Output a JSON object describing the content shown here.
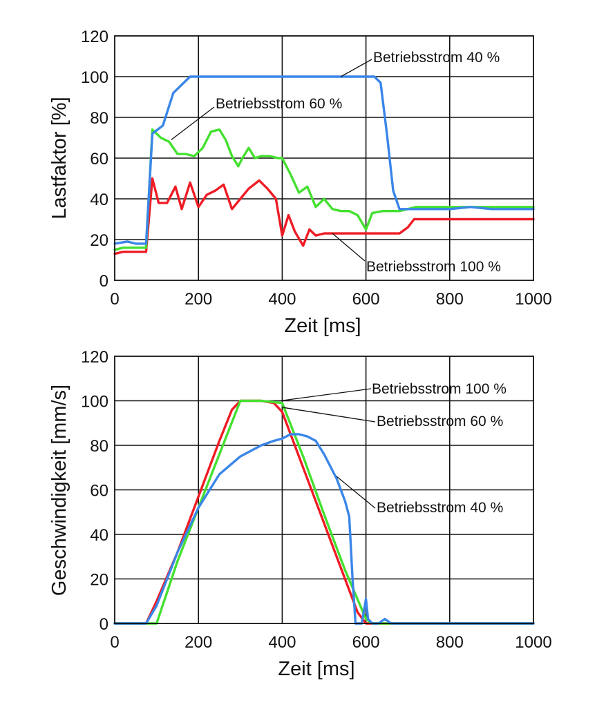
{
  "colors": {
    "red": "#ee1c25",
    "green": "#44e030",
    "blue": "#3a86e8"
  },
  "chart_data": [
    {
      "type": "line",
      "xlabel": "Zeit [ms]",
      "ylabel": "Lastfaktor [%]",
      "xlim": [
        0,
        1000
      ],
      "ylim": [
        0,
        120
      ],
      "xticks": [
        0,
        200,
        400,
        600,
        800,
        1000
      ],
      "yticks": [
        0,
        20,
        40,
        60,
        80,
        100,
        120
      ],
      "grid": true,
      "series": [
        {
          "name": "Betriebsstrom 100 %",
          "color": "red",
          "x": [
            0,
            20,
            40,
            60,
            75,
            90,
            105,
            125,
            145,
            160,
            180,
            200,
            220,
            240,
            260,
            280,
            300,
            320,
            345,
            365,
            385,
            400,
            415,
            430,
            450,
            465,
            480,
            500,
            520,
            540,
            560,
            580,
            600,
            620,
            640,
            660,
            680,
            700,
            715,
            750,
            800,
            850,
            900,
            950,
            1000
          ],
          "y": [
            13,
            14,
            14,
            14,
            14,
            50,
            38,
            38,
            46,
            35,
            48,
            36,
            42,
            44,
            47,
            35,
            40,
            45,
            49,
            45,
            40,
            22,
            32,
            24,
            17,
            25,
            22,
            23,
            23,
            23,
            23,
            23,
            23,
            23,
            23,
            23,
            23,
            26,
            30,
            30,
            30,
            30,
            30,
            30,
            30
          ]
        },
        {
          "name": "Betriebsstrom 60 %",
          "color": "green",
          "x": [
            0,
            20,
            40,
            60,
            75,
            90,
            110,
            130,
            150,
            170,
            190,
            210,
            230,
            250,
            265,
            280,
            295,
            305,
            320,
            335,
            350,
            370,
            390,
            400,
            420,
            440,
            460,
            480,
            500,
            520,
            540,
            560,
            580,
            600,
            615,
            640,
            680,
            720,
            760,
            800,
            850,
            900,
            950,
            1000
          ],
          "y": [
            15,
            16,
            16,
            16,
            16,
            74,
            70,
            68,
            62,
            62,
            61,
            65,
            73,
            74,
            69,
            61,
            56,
            60,
            65,
            60,
            61,
            61,
            60,
            60,
            52,
            43,
            46,
            36,
            40,
            35,
            34,
            34,
            32,
            25,
            33,
            34,
            34,
            36,
            36,
            36,
            36,
            36,
            36,
            36
          ]
        },
        {
          "name": "Betriebsstrom 40 %",
          "color": "blue",
          "x": [
            0,
            30,
            50,
            70,
            75,
            90,
            115,
            140,
            170,
            180,
            200,
            300,
            400,
            500,
            600,
            620,
            635,
            650,
            665,
            680,
            700,
            740,
            780,
            800,
            850,
            900,
            950,
            1000
          ],
          "y": [
            18,
            19,
            18,
            18,
            18,
            72,
            76,
            92,
            98,
            100,
            100,
            100,
            100,
            100,
            100,
            100,
            97,
            72,
            44,
            35,
            35,
            35,
            35,
            35,
            36,
            35,
            35,
            35
          ]
        }
      ],
      "annotations": [
        {
          "text": "Betriebsstrom 40 %",
          "series": "Betriebsstrom 40 %",
          "point_x": 540,
          "point_y": 100
        },
        {
          "text": "Betriebsstrom 60 %",
          "series": "Betriebsstrom 60 %",
          "point_x": 135,
          "point_y": 69
        },
        {
          "text": "Betriebsstrom 100 %",
          "series": "Betriebsstrom 100 %",
          "point_x": 520,
          "point_y": 23
        }
      ]
    },
    {
      "type": "line",
      "xlabel": "Zeit [ms]",
      "ylabel": "Geschwindigkeit [mm/s]",
      "xlim": [
        0,
        1000
      ],
      "ylim": [
        0,
        120
      ],
      "xticks": [
        0,
        200,
        400,
        600,
        800,
        1000
      ],
      "yticks": [
        0,
        20,
        40,
        60,
        80,
        100,
        120
      ],
      "grid": true,
      "series": [
        {
          "name": "Betriebsstrom 100 %",
          "color": "red",
          "x": [
            0,
            75,
            100,
            150,
            200,
            250,
            280,
            300,
            350,
            380,
            400,
            450,
            500,
            550,
            580,
            600,
            605,
            650,
            700,
            800,
            900,
            1000
          ],
          "y": [
            0,
            0,
            10,
            32,
            57,
            82,
            96,
            100,
            100,
            99,
            95,
            70,
            45,
            20,
            5,
            0,
            0,
            0,
            0,
            0,
            0,
            0
          ]
        },
        {
          "name": "Betriebsstrom 60 %",
          "color": "green",
          "x": [
            0,
            100,
            150,
            200,
            250,
            300,
            350,
            400,
            450,
            500,
            550,
            600,
            615,
            700,
            800,
            900,
            1000
          ],
          "y": [
            0,
            0,
            28,
            52,
            76,
            100,
            100,
            99,
            75,
            49,
            24,
            2,
            0,
            0,
            0,
            0,
            0
          ]
        },
        {
          "name": "Betriebsstrom 40 %",
          "color": "blue",
          "x": [
            0,
            75,
            100,
            150,
            200,
            250,
            300,
            350,
            380,
            400,
            420,
            440,
            460,
            480,
            500,
            530,
            550,
            560,
            568,
            575,
            590,
            600,
            605,
            615,
            630,
            645,
            660,
            700,
            800,
            900,
            1000
          ],
          "y": [
            0,
            0,
            8,
            32,
            52,
            67,
            75,
            80,
            82,
            83,
            85,
            85,
            84,
            82,
            76,
            65,
            55,
            48,
            20,
            0,
            0,
            11,
            2,
            0,
            0,
            2,
            0,
            0,
            0,
            0,
            0
          ]
        }
      ],
      "annotations": [
        {
          "text": "Betriebsstrom 100 %",
          "series": "Betriebsstrom 100 %",
          "point_x": 395,
          "point_y": 100
        },
        {
          "text": "Betriebsstrom 60 %",
          "series": "Betriebsstrom 60 %",
          "point_x": 402,
          "point_y": 97
        },
        {
          "text": "Betriebsstrom 40 %",
          "series": "Betriebsstrom 40 %",
          "point_x": 530,
          "point_y": 66
        }
      ]
    }
  ]
}
